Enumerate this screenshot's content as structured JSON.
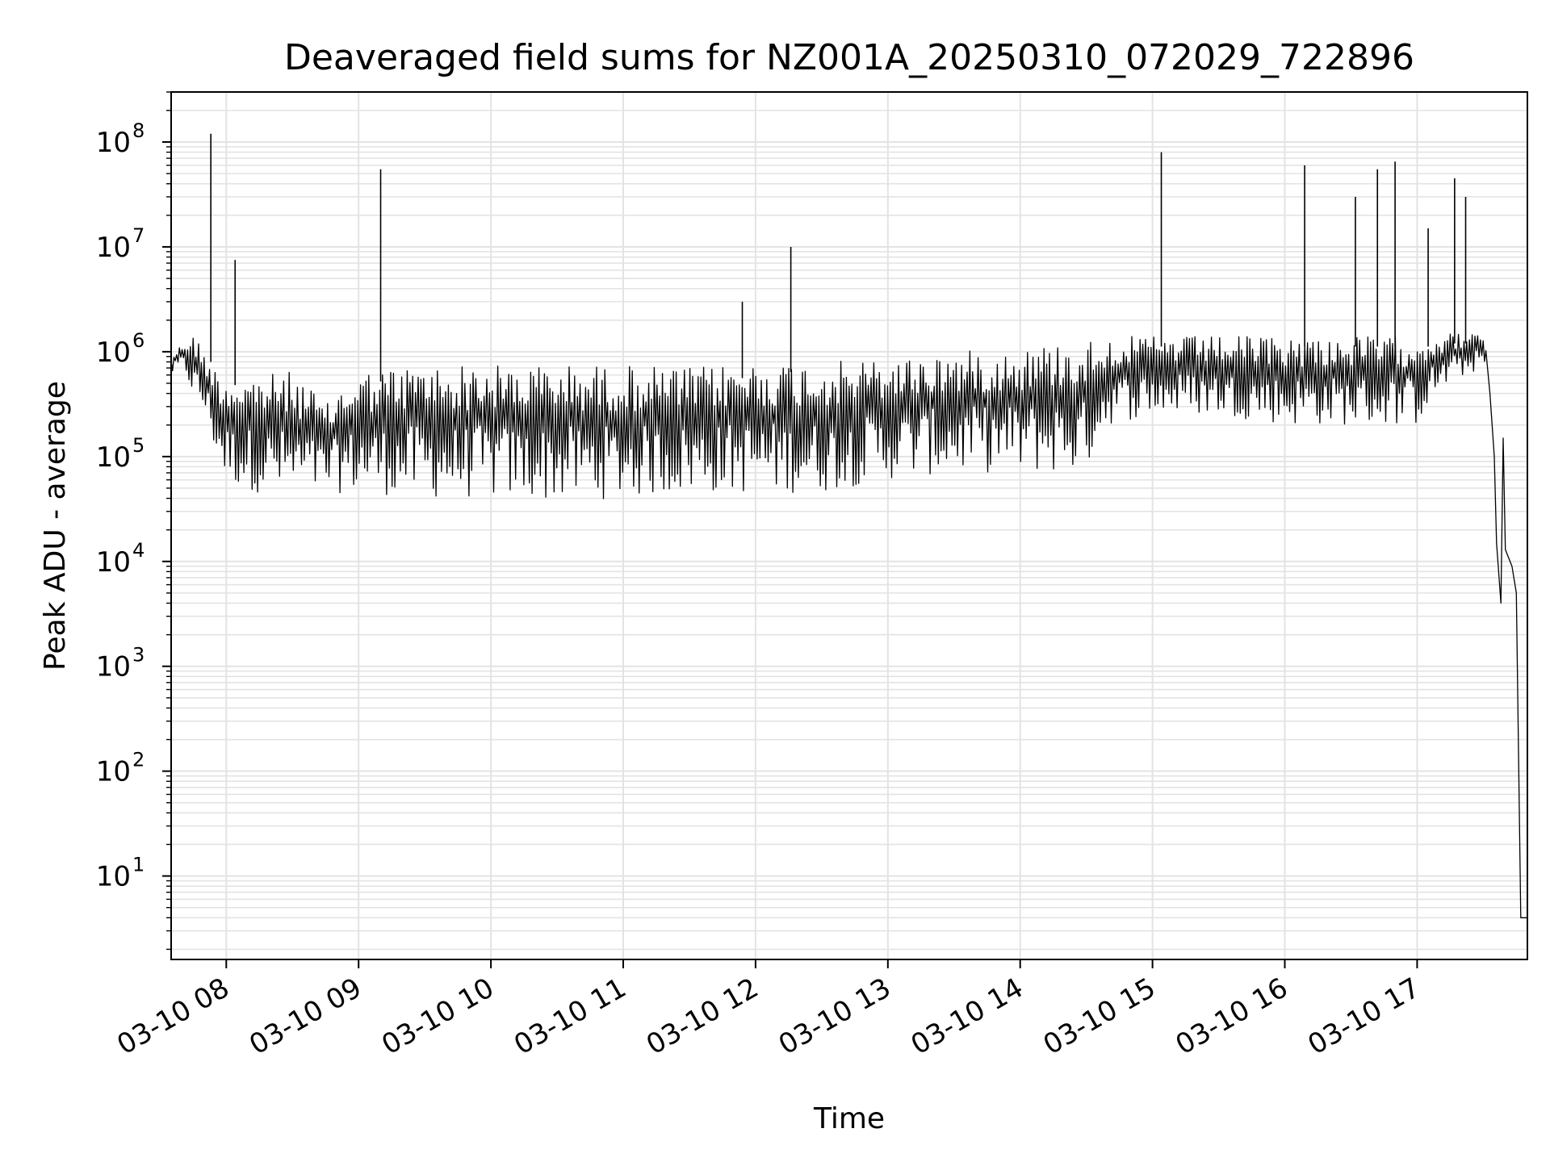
{
  "chart_data": {
    "type": "line",
    "title": "Deaveraged field sums for NZ001A_20250310_072029_722896",
    "xlabel": "Time",
    "ylabel": "Peak ADU - average",
    "y_scale": "log",
    "ylim": [
      1.6,
      300000000
    ],
    "x_range": [
      "03-10 07:35",
      "03-10 17:50"
    ],
    "grid": true,
    "color": "#000000",
    "x_ticks": [
      {
        "time": "03-10 08:00",
        "label": "03-10 08"
      },
      {
        "time": "03-10 09:00",
        "label": "03-10 09"
      },
      {
        "time": "03-10 10:00",
        "label": "03-10 10"
      },
      {
        "time": "03-10 11:00",
        "label": "03-10 11"
      },
      {
        "time": "03-10 12:00",
        "label": "03-10 12"
      },
      {
        "time": "03-10 13:00",
        "label": "03-10 13"
      },
      {
        "time": "03-10 14:00",
        "label": "03-10 14"
      },
      {
        "time": "03-10 15:00",
        "label": "03-10 15"
      },
      {
        "time": "03-10 16:00",
        "label": "03-10 16"
      },
      {
        "time": "03-10 17:00",
        "label": "03-10 17"
      }
    ],
    "y_ticks": [
      {
        "value": 10,
        "base": "10",
        "exp": "1"
      },
      {
        "value": 100,
        "base": "10",
        "exp": "2"
      },
      {
        "value": 1000,
        "base": "10",
        "exp": "3"
      },
      {
        "value": 10000,
        "base": "10",
        "exp": "4"
      },
      {
        "value": 100000,
        "base": "10",
        "exp": "5"
      },
      {
        "value": 1000000,
        "base": "10",
        "exp": "6"
      },
      {
        "value": 10000000,
        "base": "10",
        "exp": "7"
      },
      {
        "value": 100000000,
        "base": "10",
        "exp": "8"
      }
    ],
    "series": [
      {
        "envelope": [
          {
            "time": "03-10 07:35",
            "low": 600000,
            "high": 900000
          },
          {
            "time": "03-10 07:40",
            "low": 700000,
            "high": 1200000
          },
          {
            "time": "03-10 07:45",
            "low": 350000,
            "high": 1500000
          },
          {
            "time": "03-10 07:50",
            "low": 250000,
            "high": 1000000
          },
          {
            "time": "03-10 07:55",
            "low": 100000,
            "high": 700000
          },
          {
            "time": "03-10 08:00",
            "low": 55000,
            "high": 600000
          },
          {
            "time": "03-10 08:15",
            "low": 45000,
            "high": 600000
          },
          {
            "time": "03-10 08:30",
            "low": 40000,
            "high": 650000
          },
          {
            "time": "03-10 08:45",
            "low": 45000,
            "high": 300000
          },
          {
            "time": "03-10 09:00",
            "low": 45000,
            "high": 650000
          },
          {
            "time": "03-10 09:30",
            "low": 40000,
            "high": 750000
          },
          {
            "time": "03-10 10:00",
            "low": 40000,
            "high": 750000
          },
          {
            "time": "03-10 10:30",
            "low": 38000,
            "high": 750000
          },
          {
            "time": "03-10 11:00",
            "low": 40000,
            "high": 750000
          },
          {
            "time": "03-10 11:30",
            "low": 45000,
            "high": 700000
          },
          {
            "time": "03-10 12:00",
            "low": 45000,
            "high": 800000
          },
          {
            "time": "03-10 12:30",
            "low": 45000,
            "high": 800000
          },
          {
            "time": "03-10 13:00",
            "low": 60000,
            "high": 850000
          },
          {
            "time": "03-10 13:30",
            "low": 70000,
            "high": 1000000
          },
          {
            "time": "03-10 14:00",
            "low": 70000,
            "high": 1100000
          },
          {
            "time": "03-10 14:30",
            "low": 70000,
            "high": 1300000
          },
          {
            "time": "03-10 14:40",
            "low": 200000,
            "high": 1400000
          },
          {
            "time": "03-10 15:00",
            "low": 250000,
            "high": 1400000
          },
          {
            "time": "03-10 15:30",
            "low": 250000,
            "high": 1400000
          },
          {
            "time": "03-10 16:00",
            "low": 200000,
            "high": 1400000
          },
          {
            "time": "03-10 16:30",
            "low": 200000,
            "high": 1400000
          },
          {
            "time": "03-10 17:00",
            "low": 200000,
            "high": 1400000
          },
          {
            "time": "03-10 17:15",
            "low": 500000,
            "high": 1500000
          },
          {
            "time": "03-10 17:30",
            "low": 700000,
            "high": 1500000
          },
          {
            "time": "03-10 17:32",
            "low": 600000,
            "high": 1000000
          }
        ],
        "tail": [
          {
            "time": "03-10 17:33",
            "value": 400000
          },
          {
            "time": "03-10 17:35",
            "value": 100000
          },
          {
            "time": "03-10 17:36",
            "value": 15000
          },
          {
            "time": "03-10 17:38",
            "value": 4000
          },
          {
            "time": "03-10 17:39",
            "value": 150000
          },
          {
            "time": "03-10 17:40",
            "value": 13000
          },
          {
            "time": "03-10 17:43",
            "value": 9000
          },
          {
            "time": "03-10 17:45",
            "value": 5000
          },
          {
            "time": "03-10 17:47",
            "value": 4
          },
          {
            "time": "03-10 17:50",
            "value": 4
          }
        ],
        "spikes": [
          {
            "time": "03-10 07:53",
            "value": 120000000
          },
          {
            "time": "03-10 08:04",
            "value": 7500000
          },
          {
            "time": "03-10 09:10",
            "value": 55000000
          },
          {
            "time": "03-10 11:54",
            "value": 3000000
          },
          {
            "time": "03-10 12:16",
            "value": 10000000
          },
          {
            "time": "03-10 15:04",
            "value": 80000000
          },
          {
            "time": "03-10 16:09",
            "value": 60000000
          },
          {
            "time": "03-10 16:32",
            "value": 30000000
          },
          {
            "time": "03-10 16:42",
            "value": 55000000
          },
          {
            "time": "03-10 16:50",
            "value": 65000000
          },
          {
            "time": "03-10 17:05",
            "value": 15000000
          },
          {
            "time": "03-10 17:17",
            "value": 45000000
          },
          {
            "time": "03-10 17:22",
            "value": 30000000
          }
        ]
      }
    ]
  }
}
